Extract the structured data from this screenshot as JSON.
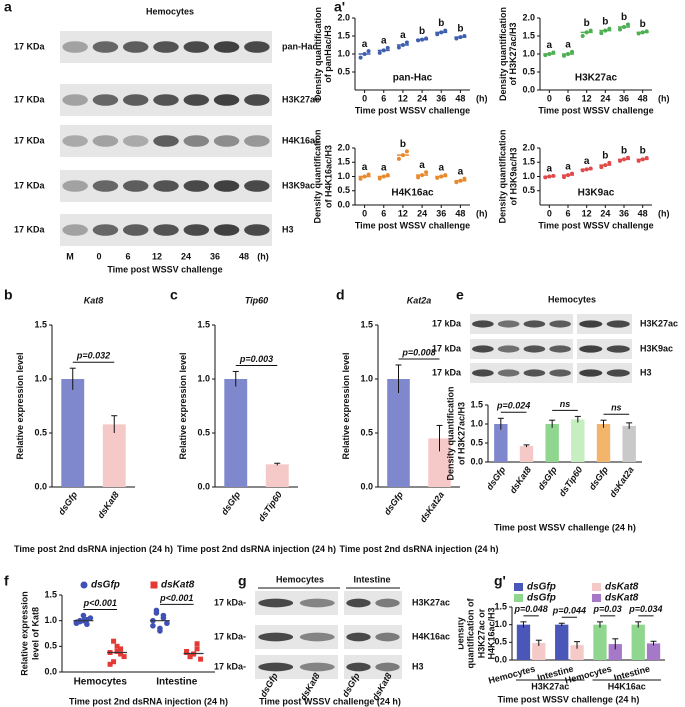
{
  "panel_labels": [
    "a",
    "a'",
    "b",
    "c",
    "d",
    "e",
    "f",
    "g",
    "g'"
  ],
  "blot_a": {
    "title": "Hemocytes",
    "markers": [
      "17 KDa",
      "17 KDa",
      "17 KDa",
      "17 KDa",
      "17 KDa"
    ],
    "proteins": [
      "pan-Hac",
      "H3K27ac",
      "H4K16ac",
      "H3K9ac",
      "H3"
    ],
    "lanes": [
      "M",
      "0",
      "6",
      "12",
      "24",
      "36",
      "48"
    ],
    "unit": "(h)",
    "xlabel": "Time post WSSV challenge"
  },
  "blot_e": {
    "title": "Hemocytes",
    "markers": [
      "17 kDa",
      "17 kDa",
      "17 kDa"
    ],
    "proteins": [
      "H3K27ac",
      "H3K9ac",
      "H3"
    ]
  },
  "blot_g": {
    "tissues": [
      "Hemocytes",
      "Intestine"
    ],
    "markers": [
      "17 kDa-",
      "17 kDa-",
      "17 kDa-"
    ],
    "proteins": [
      "H3K27ac",
      "H4K16ac",
      "H3"
    ],
    "lanes": [
      "dsGfp",
      "dsKat8",
      "dsGfp",
      "dsKat8"
    ],
    "xlabel": "Time post WSSV challenge (24 h)"
  },
  "chart_data": [
    {
      "type": "dot",
      "ylabel": "Density quantification of panHac/H3",
      "xlabel": "Time post WSSV challenge",
      "label": "pan-Hac",
      "x_unit": "(h)",
      "color": "#3f5fb0",
      "categories": [
        "0",
        "6",
        "12",
        "24",
        "36",
        "48"
      ],
      "values": [
        1.0,
        1.1,
        1.25,
        1.4,
        1.6,
        1.47
      ],
      "points": [
        [
          0.9,
          1.0,
          1.08
        ],
        [
          1.03,
          1.1,
          1.17
        ],
        [
          1.18,
          1.25,
          1.32
        ],
        [
          1.38,
          1.4,
          1.43
        ],
        [
          1.55,
          1.6,
          1.65
        ],
        [
          1.43,
          1.47,
          1.5
        ]
      ],
      "letters": [
        "a",
        "a",
        "a",
        "b",
        "b",
        "b"
      ],
      "ylim": [
        0,
        2
      ],
      "yticks": [
        0.5,
        {
          "value": 1,
          "label": "1.0"
        },
        1.5,
        {
          "value": 2,
          "label": "2.0"
        }
      ]
    },
    {
      "type": "dot",
      "ylabel": "Density quantification of H3K27ac/H3",
      "xlabel": "Time post WSSV challenge",
      "label": "H3K27ac",
      "x_unit": "(h)",
      "color": "#4caf50",
      "categories": [
        "0",
        "6",
        "12",
        "24",
        "36",
        "48"
      ],
      "values": [
        1.0,
        1.0,
        1.6,
        1.65,
        1.75,
        1.6
      ],
      "points": [
        [
          0.97,
          1.0,
          1.04
        ],
        [
          0.95,
          1.0,
          1.06
        ],
        [
          1.5,
          1.6,
          1.65
        ],
        [
          1.58,
          1.65,
          1.7
        ],
        [
          1.68,
          1.75,
          1.82
        ],
        [
          1.57,
          1.6,
          1.63
        ]
      ],
      "letters": [
        "a",
        "a",
        "b",
        "b",
        "b",
        "b"
      ],
      "ylim": [
        0,
        2
      ],
      "yticks": [
        {
          "value": 0,
          "label": "0.0"
        },
        0.5,
        {
          "value": 1,
          "label": "1.0"
        },
        1.5,
        {
          "value": 2,
          "label": "2.0"
        }
      ]
    },
    {
      "type": "dot",
      "ylabel": "Density quantification of H4K16ac/H3",
      "xlabel": "Time post WSSV challenge",
      "label": "H4K16ac",
      "x_unit": "(h)",
      "color": "#e8892b",
      "categories": [
        "0",
        "6",
        "12",
        "24",
        "36",
        "48"
      ],
      "values": [
        1.0,
        1.0,
        1.75,
        1.05,
        1.0,
        0.85
      ],
      "points": [
        [
          0.92,
          1.0,
          1.07
        ],
        [
          0.93,
          1.0,
          1.05
        ],
        [
          1.62,
          1.75,
          1.88
        ],
        [
          0.97,
          1.05,
          1.15
        ],
        [
          0.95,
          1.0,
          1.05
        ],
        [
          0.8,
          0.85,
          0.92
        ]
      ],
      "letters": [
        "a",
        "a",
        "b",
        "a",
        "a",
        "a"
      ],
      "ylim": [
        0,
        2
      ],
      "yticks": [
        {
          "value": 0,
          "label": "0.0"
        },
        0.5,
        {
          "value": 1,
          "label": "1.0"
        },
        1.5,
        {
          "value": 2,
          "label": "2.0"
        }
      ]
    },
    {
      "type": "dot",
      "ylabel": "Density quantification of H3K9ac/H3",
      "xlabel": "Time post WSSV challenge",
      "label": "H3K9ac",
      "x_unit": "(h)",
      "color": "#e04a4a",
      "categories": [
        "0",
        "6",
        "12",
        "24",
        "36",
        "48"
      ],
      "values": [
        1.0,
        1.05,
        1.25,
        1.4,
        1.6,
        1.6
      ],
      "points": [
        [
          0.97,
          1.0,
          1.02
        ],
        [
          0.98,
          1.05,
          1.1
        ],
        [
          1.22,
          1.25,
          1.28
        ],
        [
          1.33,
          1.4,
          1.48
        ],
        [
          1.55,
          1.6,
          1.66
        ],
        [
          1.55,
          1.6,
          1.65
        ]
      ],
      "letters": [
        "a",
        "a",
        "a",
        "b",
        "b",
        "b"
      ],
      "ylim": [
        0,
        2
      ],
      "yticks": [
        0.5,
        {
          "value": 1,
          "label": "1.0"
        },
        1.5,
        {
          "value": 2,
          "label": "2.0"
        }
      ]
    },
    {
      "type": "bar",
      "title": "Kat8",
      "ylabel": "Relative expression level",
      "xlabel": "Time post 2nd dsRNA injection (24 h)",
      "categories": [
        "dsGfp",
        "dsKat8"
      ],
      "values": [
        1.0,
        0.58
      ],
      "errors": [
        0.1,
        0.08
      ],
      "colors": [
        "#7f88cc",
        "#f6c9c9"
      ],
      "annotations": [
        "p=0.032"
      ],
      "ylim": [
        0,
        1.5
      ],
      "yticks": [
        {
          "value": 0,
          "label": "0.0"
        },
        0.5,
        {
          "value": 1,
          "label": "1.0"
        },
        1.5
      ]
    },
    {
      "type": "bar",
      "title": "Tip60",
      "ylabel": "Relative expression level",
      "xlabel": "Time post 2nd dsRNA injection (24 h)",
      "categories": [
        "dsGfp",
        "dsTip60"
      ],
      "values": [
        1.0,
        0.21
      ],
      "errors": [
        0.07,
        0.01
      ],
      "colors": [
        "#7f88cc",
        "#f6c9c9"
      ],
      "annotations": [
        "p=0.003"
      ],
      "ylim": [
        0,
        1.5
      ],
      "yticks": [
        {
          "value": 0,
          "label": "0.0"
        },
        0.5,
        {
          "value": 1,
          "label": "1.0"
        },
        1.5
      ]
    },
    {
      "type": "bar",
      "title": "Kat2a",
      "ylabel": "Relative expression level",
      "xlabel": "Time post 2nd dsRNA injection (24 h)",
      "categories": [
        "dsGfp",
        "dsKat2a"
      ],
      "values": [
        1.0,
        0.45
      ],
      "errors": [
        0.13,
        0.12
      ],
      "colors": [
        "#7f88cc",
        "#f6c9c9"
      ],
      "annotations": [
        "p=0.008"
      ],
      "ylim": [
        0,
        1.5
      ],
      "yticks": [
        {
          "value": 0,
          "label": "0.0"
        },
        0.5,
        {
          "value": 1,
          "label": "1.0"
        },
        1.5
      ]
    },
    {
      "type": "bar",
      "ylabel": "Density quantification of H3K27ac/H3",
      "xlabel": "Time post WSSV challenge (24 h)",
      "categories": [
        "dsGfp",
        "dsKat8",
        "dsGfp",
        "dsTip60",
        "dsGfp",
        "dsKat2a"
      ],
      "values": [
        1.0,
        0.42,
        1.0,
        1.12,
        1.0,
        0.95
      ],
      "errors": [
        0.15,
        0.03,
        0.1,
        0.08,
        0.1,
        0.08
      ],
      "colors": [
        "#7f88cc",
        "#f6c9c9",
        "#8fd68f",
        "#c7eec0",
        "#f3b46b",
        "#c9c9c9"
      ],
      "annotations": [
        "p=0.024",
        "ns",
        "ns"
      ],
      "ylim": [
        0,
        1.5
      ],
      "yticks": [
        {
          "value": 0,
          "label": "0.0"
        },
        0.5,
        {
          "value": 1,
          "label": "1.0"
        },
        1.5
      ]
    },
    {
      "type": "strip",
      "ylabel": "Relative expression level of Kat8",
      "xlabel": "Time post 2nd dsRNA injection (24 h)",
      "categories": [
        "Hemocytes",
        "Intestine"
      ],
      "series": [
        {
          "name": "dsGfp",
          "color": "#3f51b5",
          "marker": "circle",
          "values": [
            1.0,
            1.0
          ],
          "points": [
            [
              0.95,
              0.98,
              1.0,
              1.02,
              1.05,
              0.97,
              1.0,
              1.1,
              0.93
            ],
            [
              1.0,
              1.15,
              0.85,
              1.1,
              0.95,
              0.9,
              1.2,
              0.8,
              1.05
            ]
          ]
        },
        {
          "name": "dsKat8",
          "color": "#e53935",
          "marker": "square",
          "values": [
            0.38,
            0.36
          ],
          "points": [
            [
              0.38,
              0.2,
              0.5,
              0.45,
              0.3,
              0.15,
              0.6,
              0.4,
              0.35
            ],
            [
              0.38,
              0.3,
              0.35,
              0.45,
              0.25,
              0.4,
              0.3,
              0.35,
              0.55
            ]
          ]
        }
      ],
      "annotations": [
        "p<0.001",
        "p<0.001"
      ],
      "ylim": [
        0,
        1.5
      ],
      "yticks": [
        {
          "value": 0,
          "label": "0.0"
        },
        0.5,
        {
          "value": 1,
          "label": "1.0"
        },
        1.5
      ]
    },
    {
      "type": "bar",
      "ylabel": "Density quantification of H3K27ac or H4K16ac/H3",
      "xlabel": "Time post WSSV challenge (24 h)",
      "categories": [
        "Hemocytes",
        "Intestine",
        "Hemocytes",
        "Intestine"
      ],
      "groups": [
        "H3K27ac",
        "H4K16ac"
      ],
      "series": [
        {
          "name": "dsGfp",
          "color": "#4a56b8",
          "values": [
            1.0,
            1.0,
            null,
            null
          ],
          "errors": [
            0.08,
            0.04,
            null,
            null
          ]
        },
        {
          "name": "dsKat8",
          "color": "#f6c9c9",
          "values": [
            0.48,
            0.42,
            null,
            null
          ],
          "errors": [
            0.08,
            0.1,
            null,
            null
          ]
        },
        {
          "name": "dsGfp",
          "color": "#8fd68f",
          "values": [
            null,
            null,
            1.0,
            1.0
          ],
          "errors": [
            null,
            null,
            0.08,
            0.08
          ]
        },
        {
          "name": "dsKat8",
          "color": "#a678c8",
          "values": [
            null,
            null,
            0.45,
            0.47
          ],
          "errors": [
            null,
            null,
            0.15,
            0.06
          ]
        }
      ],
      "annotations": [
        "p=0.048",
        "p=0.044",
        "p=0.03",
        "p=0.034"
      ],
      "ylim": [
        0,
        1.5
      ],
      "yticks": [
        {
          "value": 0,
          "label": "0.0"
        },
        0.5,
        {
          "value": 1,
          "label": "1.0"
        },
        1.5
      ]
    }
  ]
}
